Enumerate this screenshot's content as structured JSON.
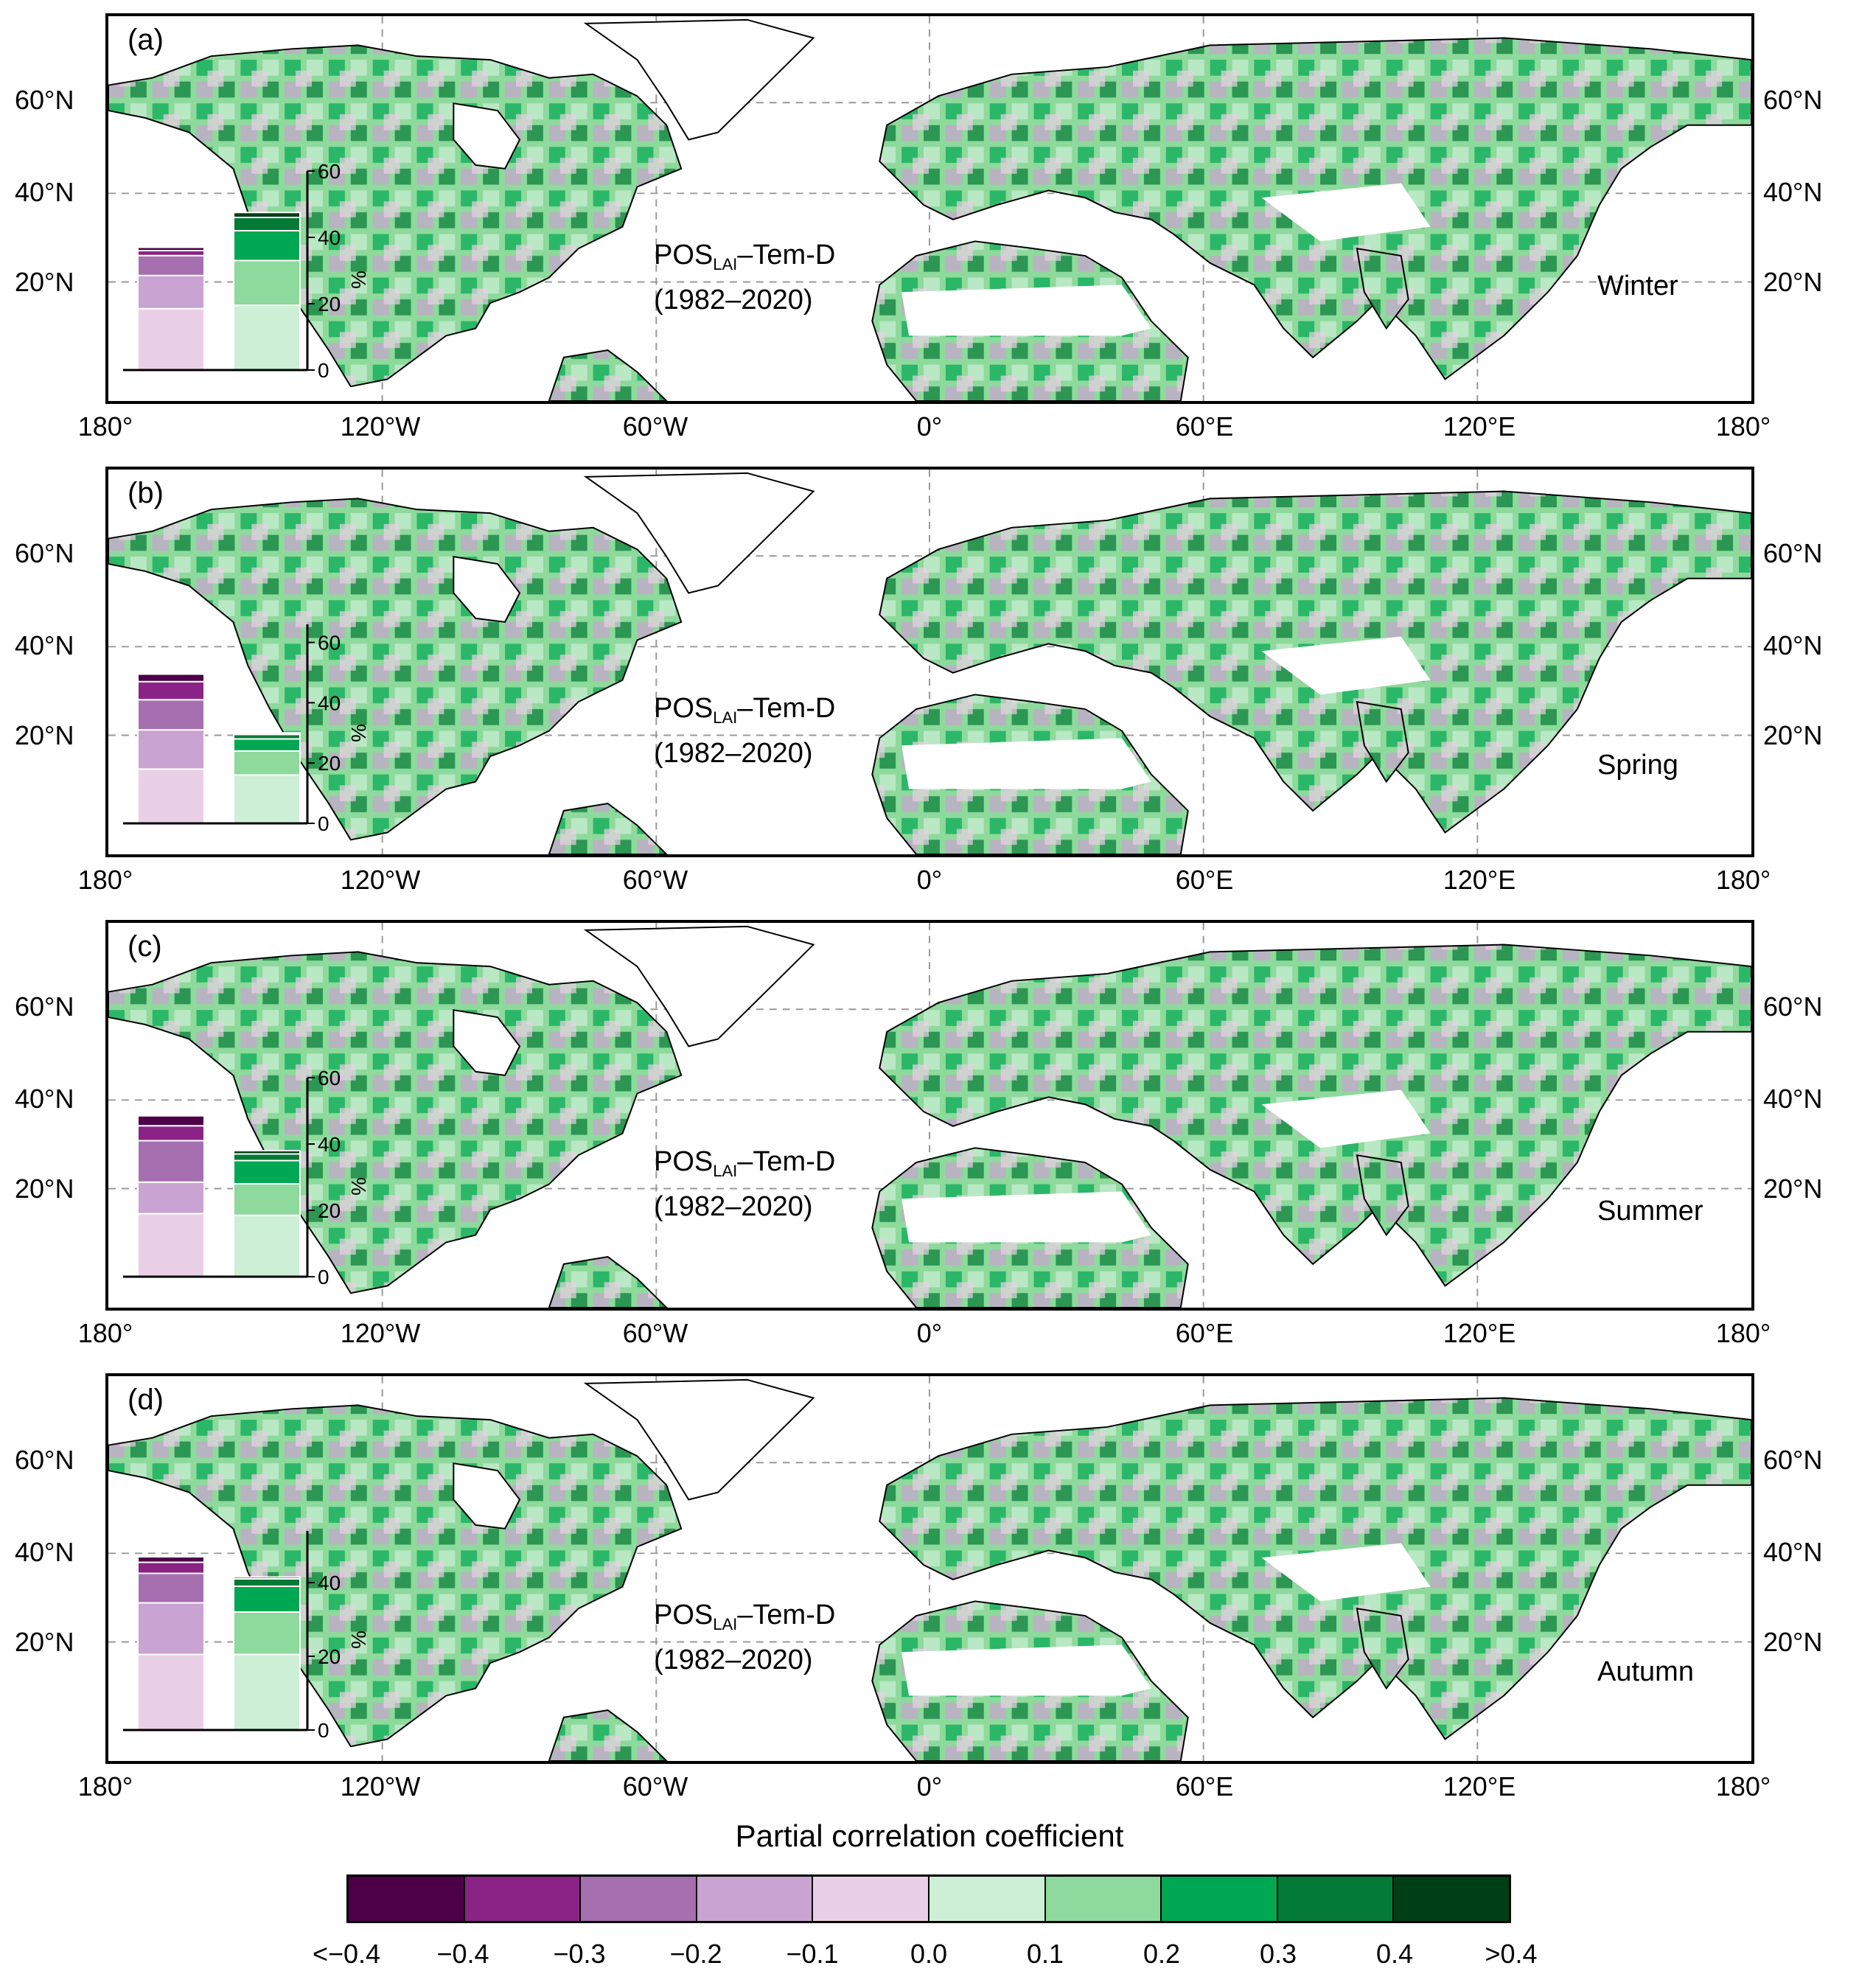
{
  "colors": {
    "scale": [
      "#4d0048",
      "#8a2385",
      "#a66fb0",
      "#c9a3d1",
      "#ead0e6",
      "#ccefd6",
      "#8ed99c",
      "#00a853",
      "#037a35",
      "#003e17"
    ],
    "land": "#7cc98a",
    "ocean": "#ffffff"
  },
  "latitude_labels": [
    "60°N",
    "40°N",
    "20°N"
  ],
  "longitude_labels": [
    "180°",
    "120°W",
    "60°W",
    "0°",
    "60°E",
    "120°E",
    "180°"
  ],
  "panels": [
    {
      "letter": "(a)",
      "season": "Winter",
      "title_main": "POS",
      "title_sub": "LAI",
      "title_rest": "–Tem-D",
      "title_period": "(1982–2020)",
      "inset": {
        "yticks": [
          "60",
          "40",
          "20",
          "0"
        ],
        "ymax": 60,
        "ylabel": "%",
        "negative": [
          18.5,
          10,
          6,
          1.5,
          1
        ],
        "positive": [
          19.5,
          13.5,
          9,
          4,
          1.5
        ]
      }
    },
    {
      "letter": "(b)",
      "season": "Spring",
      "title_main": "POS",
      "title_sub": "LAI",
      "title_rest": "–Tem-D",
      "title_period": "(1982–2020)",
      "inset": {
        "yticks": [
          "60",
          "40",
          "20",
          "0"
        ],
        "ymax": 66,
        "ylabel": "%",
        "negative": [
          18,
          13,
          10,
          6,
          2.5
        ],
        "positive": [
          16,
          8,
          4,
          1.5,
          0.5
        ]
      }
    },
    {
      "letter": "(c)",
      "season": "Summer",
      "title_main": "POS",
      "title_sub": "LAI",
      "title_rest": "–Tem-D",
      "title_period": "(1982–2020)",
      "inset": {
        "yticks": [
          "60",
          "40",
          "20",
          "0"
        ],
        "ymax": 60,
        "ylabel": "%",
        "negative": [
          19,
          9.5,
          12.5,
          4.5,
          3
        ],
        "positive": [
          18.5,
          9.5,
          7,
          2,
          1
        ]
      }
    },
    {
      "letter": "(d)",
      "season": "Autumn",
      "title_main": "POS",
      "title_sub": "LAI",
      "title_rest": "–Tem-D",
      "title_period": "(1982–2020)",
      "inset": {
        "yticks": [
          "40",
          "20",
          "0"
        ],
        "ymax": 54,
        "ylabel": "%",
        "negative": [
          20.5,
          14,
          8,
          3,
          1.5
        ],
        "positive": [
          20.5,
          11.5,
          7,
          2,
          0.5
        ]
      }
    }
  ],
  "colorbar": {
    "title": "Partial correlation coefficient",
    "ticks": [
      "<−0.4",
      "−0.4",
      "−0.3",
      "−0.2",
      "−0.1",
      "0.0",
      "0.1",
      "0.2",
      "0.3",
      "0.4",
      ">0.4"
    ]
  }
}
